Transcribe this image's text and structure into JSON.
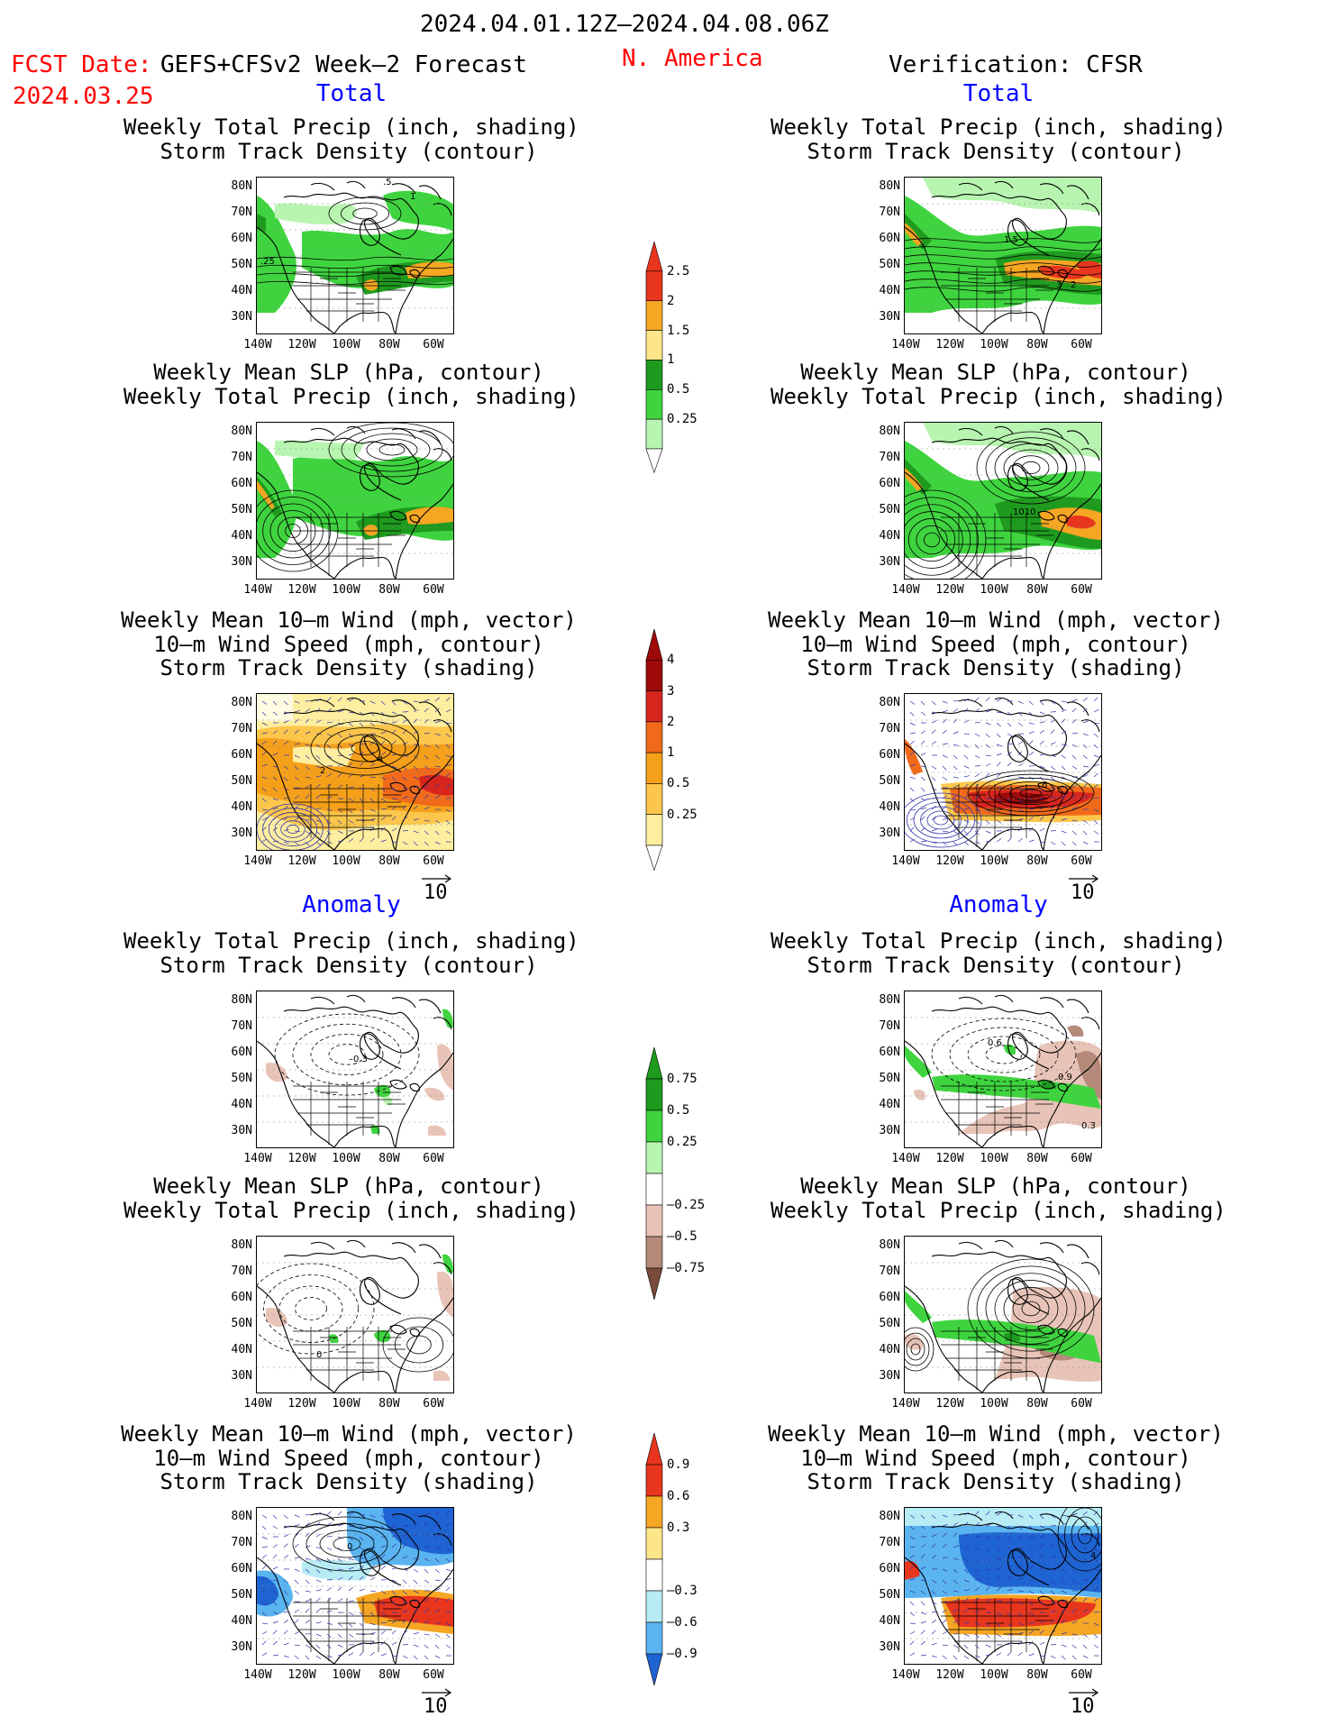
{
  "header": {
    "date_range": "2024.04.01.12Z–2024.04.08.06Z",
    "fcst_date_label": "FCST Date:",
    "model": "GEFS+CFSv2 Week–2 Forecast",
    "fcst_date": "2024.03.25",
    "region": "N. America",
    "verification": "Verification: CFSR"
  },
  "sections": {
    "total": "Total",
    "anomaly": "Anomaly"
  },
  "titles": {
    "precip_storm": [
      "Weekly Total Precip (inch, shading)",
      "Storm Track Density (contour)"
    ],
    "slp_precip": [
      "Weekly Mean SLP (hPa, contour)",
      "Weekly Total Precip (inch, shading)"
    ],
    "wind_storm": [
      "Weekly Mean 10–m Wind (mph, vector)",
      "10–m Wind Speed (mph, contour)",
      "Storm Track Density (shading)"
    ]
  },
  "axes": {
    "lat_labels": [
      "80N",
      "70N",
      "60N",
      "50N",
      "40N",
      "30N"
    ],
    "lon_labels": [
      "140W",
      "120W",
      "100W",
      "80W",
      "60W"
    ]
  },
  "vector_ref": "10",
  "colorbars": {
    "precip_total": {
      "labels": [
        "2.5",
        "2",
        "1.5",
        "1",
        "0.5",
        "0.25"
      ],
      "colors": [
        "#e8361e",
        "#f5a623",
        "#fde68a",
        "#1e9b1e",
        "#3fd43f",
        "#b8f5b0"
      ]
    },
    "storm_total": {
      "labels": [
        "4",
        "3",
        "2",
        "1",
        "0.5",
        "0.25"
      ],
      "colors": [
        "#9e0a0a",
        "#d7261e",
        "#f06a1a",
        "#f5a01a",
        "#fbc64b",
        "#fdeea0"
      ]
    },
    "precip_anom": {
      "labels": [
        "0.75",
        "0.5",
        "0.25",
        "–0.25",
        "–0.5",
        "–0.75"
      ],
      "colors": [
        "#1e9b1e",
        "#3fd43f",
        "#b8f5b0",
        "#ffffff",
        "#e8c4b8",
        "#b58a7a",
        "#7a4a3a"
      ]
    },
    "storm_anom": {
      "labels": [
        "0.9",
        "0.6",
        "0.3",
        "–0.3",
        "–0.6",
        "–0.9"
      ],
      "colors": [
        "#e8361e",
        "#f5a623",
        "#fde68a",
        "#ffffff",
        "#b8ecf5",
        "#5ab4f0",
        "#1e64d2"
      ]
    }
  },
  "contour_labels": {
    "L1": [
      ".25",
      ".5",
      "1"
    ],
    "R1": [
      "1.5",
      "3",
      "2"
    ],
    "R2": [
      "1010"
    ],
    "L3": [
      "2",
      "4"
    ],
    "R3": [
      "6"
    ],
    "L4": [
      "–0.3"
    ],
    "R4": [
      "0.6",
      "0.9",
      "0.3"
    ],
    "L6": [
      "0"
    ],
    "R6": [
      "4"
    ]
  },
  "colors": {
    "red": "#ff0000",
    "blue": "#0000ff"
  }
}
